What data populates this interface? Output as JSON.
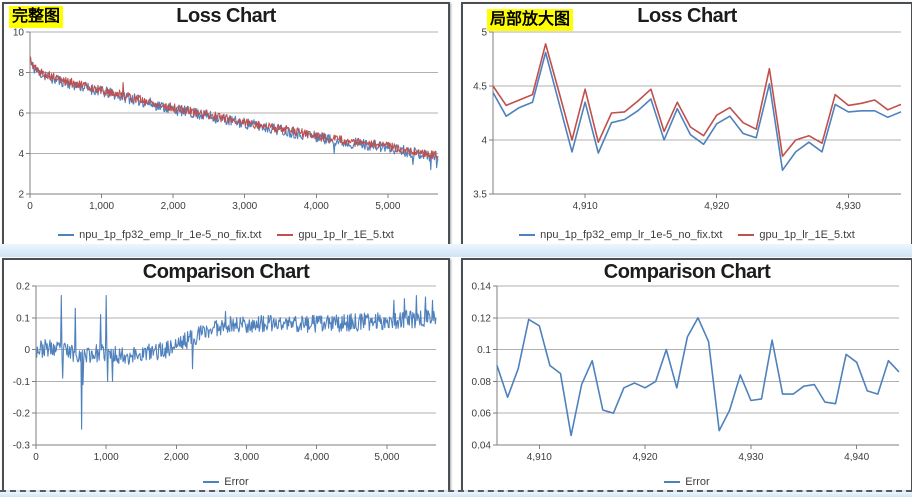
{
  "palette": {
    "npu_blue": "#4F81BD",
    "gpu_red": "#C0504D",
    "gridline": "#b0b0b0",
    "axis": "#7f7f7f",
    "tick_text": "#3d3d3d",
    "title_text": "#1c1c1c",
    "annotation_bg": "#ffff00",
    "panel_border": "#4a4f54",
    "gutter_blue": "#d9eafa"
  },
  "chart_data": [
    {
      "id": "loss-full",
      "panel": "top-left",
      "type": "line",
      "title": "Loss Chart",
      "annotation": "完整图",
      "grid": true,
      "legend_position": "bottom",
      "xlim": [
        0,
        5700
      ],
      "ylim": [
        2,
        10
      ],
      "xtick_values": [
        0,
        1000,
        2000,
        3000,
        4000,
        5000
      ],
      "xtick_labels": [
        "0",
        "1,000",
        "2,000",
        "3,000",
        "4,000",
        "5,000"
      ],
      "ytick_values": [
        2,
        4,
        6,
        8,
        10
      ],
      "ytick_labels": [
        "2",
        "4",
        "6",
        "8",
        "10"
      ],
      "series": [
        {
          "name": "npu_1p_fp32_emp_lr_1e-5_no_fix.txt",
          "color": "#4F81BD",
          "mode": "noisy",
          "trend_x": [
            0,
            20,
            50,
            100,
            200,
            350,
            550,
            800,
            1000,
            1300,
            1600,
            2000,
            2400,
            2800,
            3200,
            3600,
            4000,
            4400,
            4800,
            5200,
            5500,
            5700
          ],
          "trend_y": [
            8.66,
            8.44,
            8.24,
            8.06,
            7.86,
            7.66,
            7.46,
            7.24,
            7.06,
            6.82,
            6.54,
            6.19,
            5.92,
            5.62,
            5.36,
            5.1,
            4.82,
            4.56,
            4.4,
            4.16,
            3.96,
            3.82
          ],
          "noise_amplitude": 0.28,
          "render_seed": 11,
          "render_step": 10,
          "spikes": [
            [
              4250,
              4.0
            ],
            [
              5350,
              3.45
            ],
            [
              5600,
              3.2
            ],
            [
              5680,
              3.3
            ]
          ]
        },
        {
          "name": "gpu_1p_lr_1E_5.txt",
          "color": "#C0504D",
          "mode": "noisy",
          "trend_x": [
            0,
            20,
            50,
            100,
            200,
            350,
            550,
            800,
            1000,
            1300,
            1600,
            2000,
            2400,
            2800,
            3200,
            3600,
            4000,
            4400,
            4800,
            5200,
            5500,
            5700
          ],
          "trend_y": [
            8.72,
            8.5,
            8.3,
            8.12,
            7.92,
            7.72,
            7.52,
            7.3,
            7.12,
            6.88,
            6.6,
            6.25,
            5.98,
            5.68,
            5.42,
            5.16,
            4.88,
            4.62,
            4.46,
            4.22,
            4.02,
            3.88
          ],
          "noise_amplitude": 0.22,
          "render_seed": 5,
          "render_step": 10,
          "spikes": [
            [
              1300,
              7.5
            ]
          ]
        }
      ]
    },
    {
      "id": "loss-zoom",
      "panel": "top-right",
      "type": "line",
      "title": "Loss Chart",
      "annotation": "局部放大图",
      "grid": true,
      "legend_position": "bottom",
      "xlim": [
        4903,
        4934
      ],
      "ylim": [
        3.5,
        5
      ],
      "xtick_values": [
        4910,
        4920,
        4930
      ],
      "xtick_labels": [
        "4,910",
        "4,920",
        "4,930"
      ],
      "ytick_values": [
        3.5,
        4,
        4.5,
        5
      ],
      "ytick_labels": [
        "3.5",
        "4",
        "4.5",
        "5"
      ],
      "series": [
        {
          "name": "npu_1p_fp32_emp_lr_1e-5_no_fix.txt",
          "color": "#4F81BD",
          "mode": "points",
          "x_start": 4903,
          "x_step": 1,
          "values": [
            4.44,
            4.22,
            4.3,
            4.35,
            4.81,
            4.35,
            3.89,
            4.35,
            3.88,
            4.16,
            4.19,
            4.27,
            4.38,
            4.0,
            4.29,
            4.05,
            3.96,
            4.15,
            4.22,
            4.06,
            4.02,
            4.52,
            3.72,
            3.89,
            3.98,
            3.89,
            4.33,
            4.26,
            4.27,
            4.27,
            4.21,
            4.26
          ]
        },
        {
          "name": "gpu_1p_lr_1E_5.txt",
          "color": "#C0504D",
          "mode": "points",
          "x_start": 4903,
          "x_step": 1,
          "values": [
            4.5,
            4.32,
            4.37,
            4.42,
            4.89,
            4.45,
            4.0,
            4.47,
            3.98,
            4.25,
            4.26,
            4.36,
            4.47,
            4.08,
            4.35,
            4.12,
            4.04,
            4.23,
            4.3,
            4.16,
            4.1,
            4.66,
            3.85,
            4.0,
            4.04,
            3.97,
            4.42,
            4.32,
            4.34,
            4.37,
            4.28,
            4.33
          ]
        }
      ]
    },
    {
      "id": "comparison-full",
      "panel": "bottom-left",
      "type": "line",
      "title": "Comparison Chart",
      "annotation": "",
      "grid": true,
      "legend_position": "bottom",
      "xlim": [
        0,
        5700
      ],
      "ylim": [
        -0.3,
        0.2
      ],
      "xtick_values": [
        0,
        1000,
        2000,
        3000,
        4000,
        5000
      ],
      "xtick_labels": [
        "0",
        "1,000",
        "2,000",
        "3,000",
        "4,000",
        "5,000"
      ],
      "ytick_values": [
        -0.3,
        -0.2,
        -0.1,
        0,
        0.1,
        0.2
      ],
      "ytick_labels": [
        "-0.3",
        "-0.2",
        "-0.1",
        "0",
        "0.1",
        "0.2"
      ],
      "series": [
        {
          "name": "Error",
          "color": "#4F81BD",
          "mode": "noisy",
          "trend_x": [
            0,
            150,
            400,
            700,
            1000,
            1300,
            1600,
            1850,
            2050,
            2250,
            2450,
            2650,
            2900,
            3300,
            3700,
            4100,
            4500,
            4900,
            5300,
            5700
          ],
          "trend_y": [
            0,
            0.005,
            -0.005,
            -0.015,
            -0.01,
            -0.02,
            -0.01,
            0,
            0.02,
            0.04,
            0.06,
            0.075,
            0.08,
            0.08,
            0.082,
            0.08,
            0.085,
            0.09,
            0.095,
            0.1
          ],
          "noise_amplitude": 0.028,
          "render_seed": 23,
          "render_step": 10,
          "spikes": [
            [
              360,
              0.17
            ],
            [
              380,
              -0.09
            ],
            [
              560,
              0.13
            ],
            [
              650,
              -0.25
            ],
            [
              670,
              -0.11
            ],
            [
              920,
              0.11
            ],
            [
              1000,
              0.17
            ],
            [
              1020,
              -0.1
            ],
            [
              1090,
              -0.1
            ],
            [
              2230,
              -0.06
            ],
            [
              2700,
              0.12
            ],
            [
              5100,
              0.155
            ],
            [
              5250,
              0.16
            ],
            [
              5420,
              0.17
            ],
            [
              5550,
              0.165
            ],
            [
              5650,
              0.155
            ]
          ]
        }
      ]
    },
    {
      "id": "comparison-zoom",
      "panel": "bottom-right",
      "type": "line",
      "title": "Comparison Chart",
      "annotation": "",
      "grid": true,
      "legend_position": "bottom",
      "xlim": [
        4906,
        4944
      ],
      "ylim": [
        0.04,
        0.14
      ],
      "xtick_values": [
        4910,
        4920,
        4930,
        4940
      ],
      "xtick_labels": [
        "4,910",
        "4,920",
        "4,930",
        "4,940"
      ],
      "ytick_values": [
        0.04,
        0.06,
        0.08,
        0.1,
        0.12,
        0.14
      ],
      "ytick_labels": [
        "0.04",
        "0.06",
        "0.08",
        "0.1",
        "0.12",
        "0.14"
      ],
      "series": [
        {
          "name": "Error",
          "color": "#4F81BD",
          "mode": "points",
          "x_start": 4906,
          "x_step": 1,
          "values": [
            0.09,
            0.07,
            0.088,
            0.119,
            0.115,
            0.09,
            0.085,
            0.046,
            0.078,
            0.093,
            0.062,
            0.06,
            0.076,
            0.079,
            0.076,
            0.08,
            0.1,
            0.076,
            0.108,
            0.12,
            0.105,
            0.049,
            0.062,
            0.084,
            0.068,
            0.069,
            0.106,
            0.072,
            0.072,
            0.077,
            0.078,
            0.067,
            0.066,
            0.097,
            0.092,
            0.074,
            0.072,
            0.093,
            0.086
          ]
        }
      ]
    }
  ]
}
